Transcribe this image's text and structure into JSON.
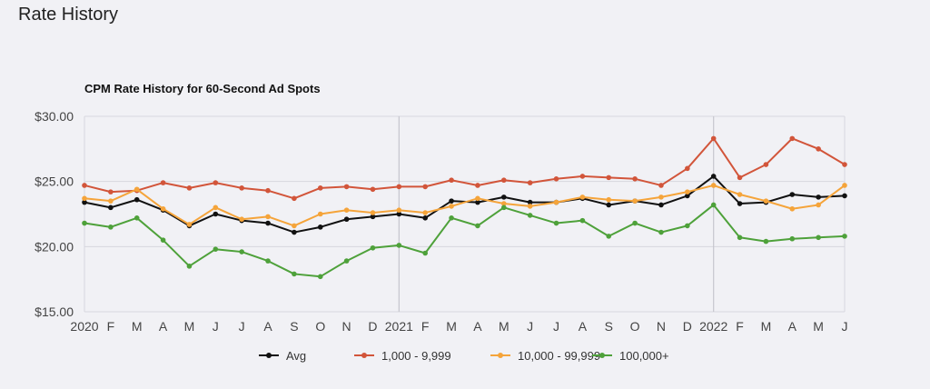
{
  "page": {
    "title": "Rate History"
  },
  "chart_data": {
    "type": "line",
    "title": "CPM Rate History for 60-Second Ad Spots",
    "xlabel": "",
    "ylabel": "",
    "ylim": [
      15,
      30
    ],
    "y_ticks": [
      "$30.00",
      "$25.00",
      "$20.00",
      "$15.00"
    ],
    "y_tick_values": [
      30,
      25,
      20,
      15
    ],
    "categories": [
      "2020",
      "F",
      "M",
      "A",
      "M",
      "J",
      "J",
      "A",
      "S",
      "O",
      "N",
      "D",
      "2021",
      "F",
      "M",
      "A",
      "M",
      "J",
      "J",
      "A",
      "S",
      "O",
      "N",
      "D",
      "2022",
      "F",
      "M",
      "A",
      "M",
      "J"
    ],
    "year_markers": [
      12,
      24
    ],
    "grid": true,
    "legend_position": "bottom",
    "series": [
      {
        "name": "Avg",
        "color": "#111111",
        "values": [
          23.4,
          23.0,
          23.6,
          22.8,
          21.6,
          22.5,
          22.0,
          21.8,
          21.1,
          21.5,
          22.1,
          22.3,
          22.5,
          22.2,
          23.5,
          23.4,
          23.8,
          23.4,
          23.4,
          23.7,
          23.2,
          23.5,
          23.2,
          23.9,
          25.4,
          23.3,
          23.4,
          24.0,
          23.8,
          23.9
        ]
      },
      {
        "name": "1,000 - 9,999",
        "color": "#d2553a",
        "values": [
          24.7,
          24.2,
          24.3,
          24.9,
          24.5,
          24.9,
          24.5,
          24.3,
          23.7,
          24.5,
          24.6,
          24.4,
          24.6,
          24.6,
          25.1,
          24.7,
          25.1,
          24.9,
          25.2,
          25.4,
          25.3,
          25.2,
          24.7,
          26.0,
          28.3,
          25.3,
          26.3,
          28.3,
          27.5,
          26.3
        ]
      },
      {
        "name": "10,000 - 99,999",
        "color": "#f5a43a",
        "values": [
          23.7,
          23.5,
          24.4,
          22.9,
          21.7,
          23.0,
          22.1,
          22.3,
          21.6,
          22.5,
          22.8,
          22.6,
          22.8,
          22.6,
          23.1,
          23.7,
          23.3,
          23.1,
          23.4,
          23.8,
          23.6,
          23.5,
          23.8,
          24.2,
          24.7,
          24.0,
          23.5,
          22.9,
          23.2,
          24.7
        ]
      },
      {
        "name": "100,000+",
        "color": "#4ea13a",
        "values": [
          21.8,
          21.5,
          22.2,
          20.5,
          18.5,
          19.8,
          19.6,
          18.9,
          17.9,
          17.7,
          18.9,
          19.9,
          20.1,
          19.5,
          22.2,
          21.6,
          23.0,
          22.4,
          21.8,
          22.0,
          20.8,
          21.8,
          21.1,
          21.6,
          23.2,
          20.7,
          20.4,
          20.6,
          20.7,
          20.8
        ]
      }
    ]
  }
}
